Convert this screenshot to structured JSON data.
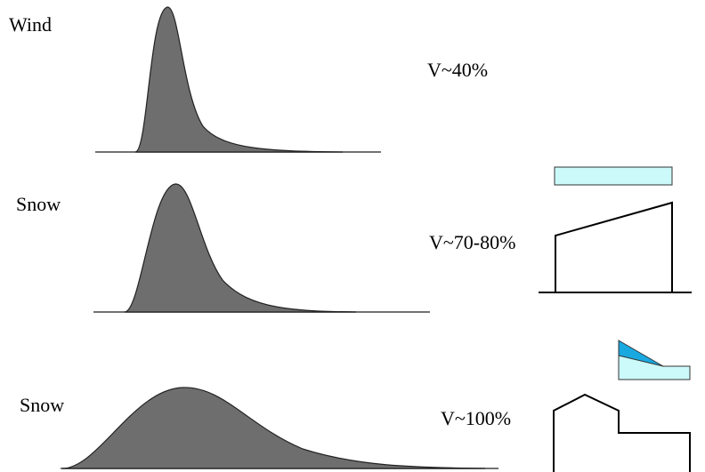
{
  "rows": [
    {
      "hazard": "Wind",
      "variation": "V~40%"
    },
    {
      "hazard": "Snow",
      "variation": "V~70-80%"
    },
    {
      "hazard": "Snow",
      "variation": "V~100%"
    }
  ]
}
